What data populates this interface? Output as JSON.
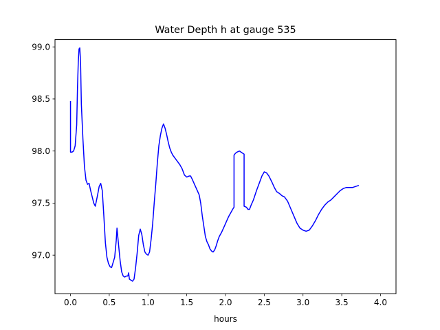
{
  "chart_data": {
    "type": "line",
    "title": "Water Depth h at gauge 535",
    "xlabel": "hours",
    "ylabel": "",
    "xlim": [
      -0.2,
      4.2
    ],
    "ylim": [
      96.63,
      99.07
    ],
    "xticks": [
      0.0,
      0.5,
      1.0,
      1.5,
      2.0,
      2.5,
      3.0,
      3.5,
      4.0
    ],
    "xtick_labels": [
      "0.0",
      "0.5",
      "1.0",
      "1.5",
      "2.0",
      "2.5",
      "3.0",
      "3.5",
      "4.0"
    ],
    "yticks": [
      97.0,
      97.5,
      98.0,
      98.5,
      99.0
    ],
    "ytick_labels": [
      "97.0",
      "97.5",
      "98.0",
      "98.5",
      "99.0"
    ],
    "grid": false,
    "series": [
      {
        "color": "#0000ff",
        "points": [
          [
            0.0,
            98.48
          ],
          [
            0.0,
            97.99
          ],
          [
            0.02,
            97.99
          ],
          [
            0.04,
            98.0
          ],
          [
            0.06,
            98.05
          ],
          [
            0.08,
            98.25
          ],
          [
            0.09,
            98.6
          ],
          [
            0.1,
            98.85
          ],
          [
            0.11,
            98.98
          ],
          [
            0.12,
            98.99
          ],
          [
            0.13,
            98.85
          ],
          [
            0.14,
            98.45
          ],
          [
            0.16,
            98.12
          ],
          [
            0.18,
            97.85
          ],
          [
            0.2,
            97.72
          ],
          [
            0.22,
            97.68
          ],
          [
            0.24,
            97.69
          ],
          [
            0.26,
            97.62
          ],
          [
            0.28,
            97.56
          ],
          [
            0.3,
            97.5
          ],
          [
            0.32,
            97.47
          ],
          [
            0.35,
            97.58
          ],
          [
            0.37,
            97.66
          ],
          [
            0.39,
            97.69
          ],
          [
            0.41,
            97.62
          ],
          [
            0.43,
            97.38
          ],
          [
            0.45,
            97.12
          ],
          [
            0.47,
            96.98
          ],
          [
            0.49,
            96.92
          ],
          [
            0.51,
            96.89
          ],
          [
            0.53,
            96.88
          ],
          [
            0.55,
            96.93
          ],
          [
            0.57,
            96.98
          ],
          [
            0.59,
            97.14
          ],
          [
            0.6,
            97.26
          ],
          [
            0.62,
            97.1
          ],
          [
            0.64,
            96.95
          ],
          [
            0.66,
            96.84
          ],
          [
            0.68,
            96.8
          ],
          [
            0.7,
            96.79
          ],
          [
            0.72,
            96.8
          ],
          [
            0.74,
            96.8
          ],
          [
            0.75,
            96.83
          ],
          [
            0.76,
            96.77
          ],
          [
            0.78,
            96.76
          ],
          [
            0.8,
            96.75
          ],
          [
            0.82,
            96.77
          ],
          [
            0.84,
            96.88
          ],
          [
            0.86,
            97.02
          ],
          [
            0.88,
            97.19
          ],
          [
            0.9,
            97.25
          ],
          [
            0.92,
            97.2
          ],
          [
            0.94,
            97.1
          ],
          [
            0.96,
            97.03
          ],
          [
            0.98,
            97.01
          ],
          [
            1.0,
            97.0
          ],
          [
            1.02,
            97.03
          ],
          [
            1.04,
            97.15
          ],
          [
            1.06,
            97.3
          ],
          [
            1.08,
            97.5
          ],
          [
            1.1,
            97.68
          ],
          [
            1.12,
            97.88
          ],
          [
            1.14,
            98.05
          ],
          [
            1.16,
            98.15
          ],
          [
            1.18,
            98.22
          ],
          [
            1.2,
            98.26
          ],
          [
            1.22,
            98.22
          ],
          [
            1.24,
            98.16
          ],
          [
            1.26,
            98.09
          ],
          [
            1.28,
            98.03
          ],
          [
            1.3,
            97.99
          ],
          [
            1.32,
            97.96
          ],
          [
            1.35,
            97.93
          ],
          [
            1.38,
            97.9
          ],
          [
            1.41,
            97.87
          ],
          [
            1.44,
            97.83
          ],
          [
            1.47,
            97.77
          ],
          [
            1.5,
            97.75
          ],
          [
            1.53,
            97.76
          ],
          [
            1.55,
            97.76
          ],
          [
            1.57,
            97.73
          ],
          [
            1.6,
            97.68
          ],
          [
            1.63,
            97.63
          ],
          [
            1.66,
            97.58
          ],
          [
            1.68,
            97.5
          ],
          [
            1.7,
            97.38
          ],
          [
            1.72,
            97.28
          ],
          [
            1.74,
            97.18
          ],
          [
            1.76,
            97.13
          ],
          [
            1.78,
            97.1
          ],
          [
            1.8,
            97.06
          ],
          [
            1.82,
            97.04
          ],
          [
            1.84,
            97.03
          ],
          [
            1.86,
            97.05
          ],
          [
            1.88,
            97.09
          ],
          [
            1.9,
            97.14
          ],
          [
            1.92,
            97.18
          ],
          [
            1.95,
            97.22
          ],
          [
            1.98,
            97.27
          ],
          [
            2.01,
            97.32
          ],
          [
            2.04,
            97.37
          ],
          [
            2.07,
            97.41
          ],
          [
            2.1,
            97.45
          ],
          [
            2.11,
            97.46
          ],
          [
            2.11,
            97.96
          ],
          [
            2.13,
            97.98
          ],
          [
            2.15,
            97.99
          ],
          [
            2.18,
            98.0
          ],
          [
            2.2,
            97.99
          ],
          [
            2.22,
            97.98
          ],
          [
            2.24,
            97.97
          ],
          [
            2.24,
            97.47
          ],
          [
            2.27,
            97.46
          ],
          [
            2.29,
            97.44
          ],
          [
            2.31,
            97.44
          ],
          [
            2.33,
            97.48
          ],
          [
            2.36,
            97.53
          ],
          [
            2.4,
            97.62
          ],
          [
            2.44,
            97.7
          ],
          [
            2.47,
            97.76
          ],
          [
            2.5,
            97.8
          ],
          [
            2.53,
            97.79
          ],
          [
            2.56,
            97.76
          ],
          [
            2.6,
            97.7
          ],
          [
            2.63,
            97.65
          ],
          [
            2.66,
            97.61
          ],
          [
            2.7,
            97.59
          ],
          [
            2.73,
            97.57
          ],
          [
            2.76,
            97.56
          ],
          [
            2.8,
            97.52
          ],
          [
            2.84,
            97.45
          ],
          [
            2.88,
            97.38
          ],
          [
            2.92,
            97.31
          ],
          [
            2.96,
            97.26
          ],
          [
            3.0,
            97.24
          ],
          [
            3.04,
            97.23
          ],
          [
            3.08,
            97.24
          ],
          [
            3.12,
            97.28
          ],
          [
            3.16,
            97.33
          ],
          [
            3.2,
            97.39
          ],
          [
            3.24,
            97.44
          ],
          [
            3.28,
            97.48
          ],
          [
            3.32,
            97.51
          ],
          [
            3.36,
            97.53
          ],
          [
            3.4,
            97.56
          ],
          [
            3.44,
            97.59
          ],
          [
            3.48,
            97.62
          ],
          [
            3.52,
            97.64
          ],
          [
            3.56,
            97.65
          ],
          [
            3.6,
            97.65
          ],
          [
            3.64,
            97.65
          ],
          [
            3.68,
            97.66
          ],
          [
            3.72,
            97.67
          ]
        ]
      }
    ]
  }
}
